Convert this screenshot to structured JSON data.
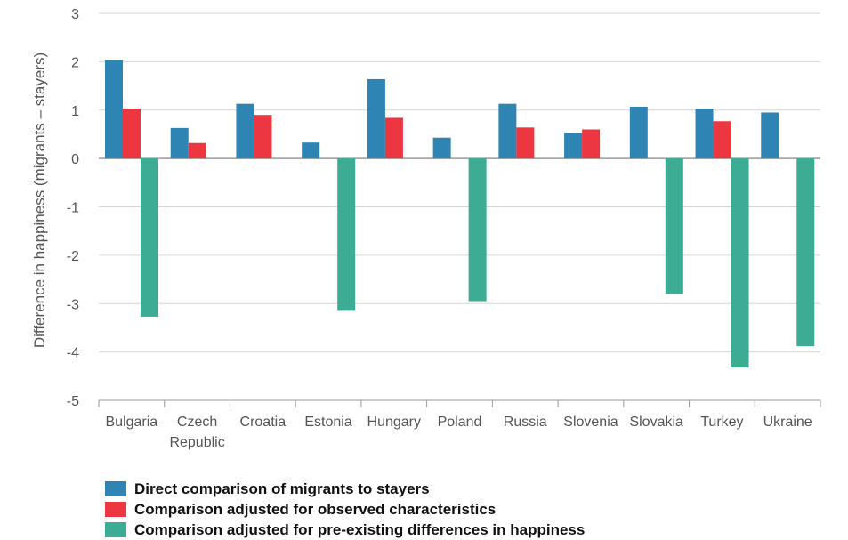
{
  "chart_data": {
    "type": "bar",
    "title": "",
    "xlabel": "",
    "ylabel": "Difference in happiness (migrants – stayers)",
    "ylim": [
      -5,
      3
    ],
    "yticks": [
      3,
      2,
      1,
      0,
      -1,
      -2,
      -3,
      -4,
      -5
    ],
    "grid": true,
    "legend_position": "bottom",
    "categories": [
      [
        "Bulgaria"
      ],
      [
        "Czech",
        "Republic"
      ],
      [
        "Croatia"
      ],
      [
        "Estonia"
      ],
      [
        "Hungary"
      ],
      [
        "Poland"
      ],
      [
        "Russia"
      ],
      [
        "Slovenia"
      ],
      [
        "Slovakia"
      ],
      [
        "Turkey"
      ],
      [
        "Ukraine"
      ]
    ],
    "series": [
      {
        "name": "Direct comparison of migrants to stayers",
        "color": "#2e85b3",
        "values": [
          2.03,
          0.63,
          1.13,
          0.33,
          1.64,
          0.43,
          1.13,
          0.53,
          1.07,
          1.03,
          0.95
        ]
      },
      {
        "name": "Comparison adjusted for observed characteristics",
        "color": "#ec3640",
        "values": [
          1.03,
          0.32,
          0.9,
          null,
          0.84,
          null,
          0.64,
          0.6,
          null,
          0.77,
          null
        ]
      },
      {
        "name": "Comparison adjusted for pre-existing differences in happiness",
        "color": "#3dac94",
        "values": [
          -3.27,
          null,
          null,
          -3.15,
          null,
          -2.95,
          null,
          null,
          -2.8,
          -4.32,
          -3.88
        ]
      }
    ]
  }
}
